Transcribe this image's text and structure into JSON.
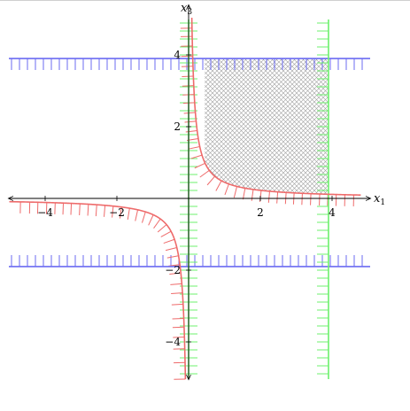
{
  "chart_data": {
    "type": "region-plot",
    "xlim": [
      -5,
      5
    ],
    "ylim": [
      -5,
      5
    ],
    "axes": {
      "x_label": "x",
      "x_label_sub": "1",
      "y_label": "x",
      "y_label_sub": "3"
    },
    "x_ticks": [
      {
        "value": -4,
        "label": "−4"
      },
      {
        "value": -2,
        "label": "−2"
      },
      {
        "value": 2,
        "label": "2"
      },
      {
        "value": 4,
        "label": "4"
      }
    ],
    "y_ticks": [
      {
        "value": 4,
        "label": "4"
      },
      {
        "value": 2,
        "label": "2"
      },
      {
        "value": -2,
        "label": "−2"
      },
      {
        "value": -4,
        "label": "−4"
      }
    ],
    "constraints": [
      {
        "kind": "hline",
        "y": 3.9,
        "color": "#6b6bf2",
        "hatch": "down"
      },
      {
        "kind": "hline",
        "y": -1.9,
        "color": "#6b6bf2",
        "hatch": "up"
      },
      {
        "kind": "vline",
        "x": 0,
        "color": "#6df06d",
        "hatch": "both"
      },
      {
        "kind": "vline",
        "x": 3.9,
        "color": "#6df06d",
        "hatch": "left"
      },
      {
        "kind": "hyperbola",
        "k": 0.45,
        "branch": "positive",
        "x_range": [
          0.1,
          4.8
        ],
        "color": "#ee6b6b",
        "hatch": "toward-origin"
      },
      {
        "kind": "hyperbola",
        "k": 0.45,
        "branch": "negative",
        "x_range": [
          -5,
          -0.1
        ],
        "color": "#ee6b6b",
        "hatch": "away-from-origin"
      }
    ],
    "feasible_region": {
      "x_min": 0.45,
      "x_max": 3.9,
      "y_max": 3.9,
      "lower_boundary": "x3 = 0.45 / x1",
      "fill": "crosshatch-gray"
    }
  }
}
